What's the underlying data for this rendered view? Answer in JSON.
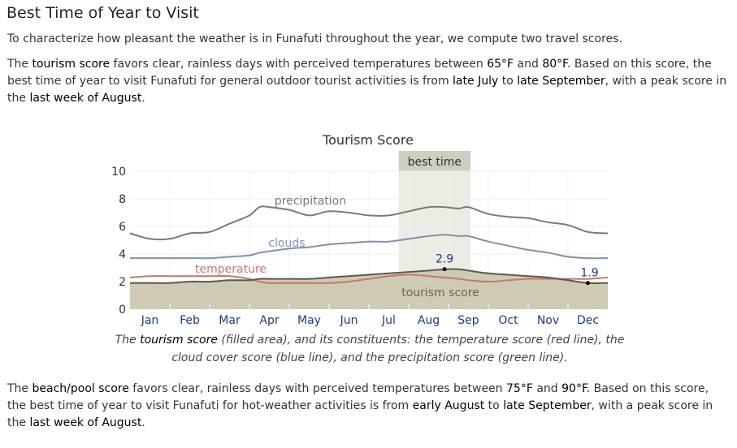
{
  "section_title": "Best Time of Year to Visit",
  "intro": "To characterize how pleasant the weather is in Funafuti throughout the year, we compute two travel scores.",
  "tourism_paragraph": {
    "p1": "The ",
    "score_name": "tourism score",
    "p2": " favors clear, rainless days with perceived temperatures between ",
    "temp_low": "65°F",
    "p3": " and ",
    "temp_high": "80°F",
    "p4": ". Based on this score, the best time of year to visit Funafuti for general outdoor tourist activities is from ",
    "start": "late July",
    "p5": " to ",
    "end": "late September",
    "p6": ", with a peak score in the ",
    "peak": "last week of August",
    "p7": "."
  },
  "caption": {
    "c1": "The ",
    "score_name": "tourism score",
    "c2": " (filled area), and its constituents: the temperature score (red line), the cloud cover score (blue line), and the precipitation score (green line)."
  },
  "beach_paragraph": {
    "p1": "The ",
    "score_name": "beach/pool score",
    "p2": " favors clear, rainless days with perceived temperatures between ",
    "temp_low": "75°F",
    "p3": " and ",
    "temp_high": "90°F",
    "p4": ". Based on this score, the best time of year to visit Funafuti for hot-weather activities is from ",
    "start": "early August",
    "p5": " to ",
    "end": "late September",
    "p6": ", with a peak score in the ",
    "peak": "last week of August",
    "p7": "."
  },
  "chart_data": {
    "type": "area",
    "title": "Tourism Score",
    "x_unit": "month (0 = Jan 1, 12 = Dec 31)",
    "months": [
      "Jan",
      "Feb",
      "Mar",
      "Apr",
      "May",
      "Jun",
      "Jul",
      "Aug",
      "Sep",
      "Oct",
      "Nov",
      "Dec"
    ],
    "ylim": [
      0,
      10
    ],
    "yticks": [
      0,
      2,
      4,
      6,
      8,
      10
    ],
    "grid": true,
    "best_time": {
      "label": "best time",
      "start": 6.75,
      "end": 8.55
    },
    "x": [
      0,
      0.5,
      1,
      1.5,
      2,
      2.5,
      3,
      3.25,
      3.5,
      4,
      4.5,
      5,
      5.5,
      6,
      6.5,
      7,
      7.5,
      7.9,
      8.25,
      8.5,
      9,
      9.5,
      10,
      10.5,
      11,
      11.5,
      12
    ],
    "series": [
      {
        "name": "precipitation",
        "role": "line",
        "color": "#7d7a6e",
        "values": [
          5.5,
          5.1,
          5.1,
          5.5,
          5.6,
          6.2,
          6.8,
          7.4,
          7.4,
          7.2,
          6.8,
          7.1,
          7.0,
          6.8,
          6.8,
          7.1,
          7.4,
          7.4,
          7.3,
          7.4,
          6.9,
          6.7,
          6.6,
          6.3,
          6.1,
          5.6,
          5.5
        ]
      },
      {
        "name": "clouds",
        "role": "line",
        "color": "#7d93ad",
        "values": [
          3.7,
          3.7,
          3.7,
          3.7,
          3.7,
          3.8,
          3.9,
          4.1,
          4.2,
          4.4,
          4.5,
          4.7,
          4.8,
          4.9,
          4.9,
          5.1,
          5.3,
          5.4,
          5.3,
          5.3,
          4.9,
          4.6,
          4.3,
          4.1,
          3.8,
          3.7,
          3.7
        ]
      },
      {
        "name": "temperature",
        "role": "line",
        "color": "#c9776c",
        "values": [
          2.3,
          2.4,
          2.4,
          2.4,
          2.4,
          2.4,
          2.2,
          2.0,
          1.9,
          1.9,
          1.9,
          1.9,
          2.0,
          2.2,
          2.4,
          2.5,
          2.4,
          2.3,
          2.2,
          2.1,
          2.0,
          2.1,
          2.2,
          2.2,
          2.2,
          2.2,
          2.3
        ]
      },
      {
        "name": "tourism score",
        "role": "area",
        "color": "#cfcab3",
        "values": [
          1.9,
          1.9,
          1.9,
          2.0,
          2.0,
          2.1,
          2.1,
          2.2,
          2.2,
          2.2,
          2.2,
          2.3,
          2.4,
          2.5,
          2.6,
          2.7,
          2.8,
          2.9,
          2.9,
          2.8,
          2.6,
          2.5,
          2.4,
          2.3,
          2.1,
          1.9,
          1.9
        ]
      }
    ],
    "annotations": [
      {
        "label": "2.9",
        "x": 7.9,
        "y": 2.9
      },
      {
        "label": "1.9",
        "x": 11.5,
        "y": 1.9
      }
    ]
  }
}
